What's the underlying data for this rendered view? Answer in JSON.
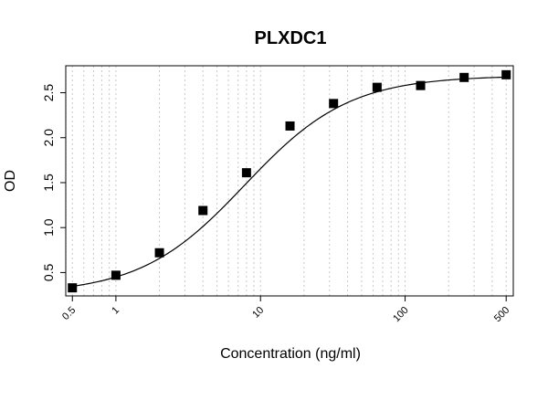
{
  "chart_data": {
    "type": "scatter",
    "title": "PLXDC1",
    "xlabel": "Concentration (ng/ml)",
    "ylabel": "OD",
    "x_scale": "log",
    "xlim": [
      0.45,
      560
    ],
    "ylim": [
      0.24,
      2.8
    ],
    "x_tick_labels": [
      "0.5",
      "1",
      "10",
      "100",
      "500"
    ],
    "x_ticks": [
      0.5,
      1,
      10,
      100,
      500
    ],
    "y_tick_labels": [
      "0.5",
      "1.0",
      "1.5",
      "2.0",
      "2.5"
    ],
    "y_ticks": [
      0.5,
      1.0,
      1.5,
      2.0,
      2.5
    ],
    "grid": "vertical dotted at log minor ticks",
    "series": [
      {
        "x": [
          0.5,
          1,
          2,
          4,
          8,
          16,
          32,
          64,
          128,
          256,
          500
        ],
        "y": [
          0.33,
          0.47,
          0.72,
          1.19,
          1.61,
          2.13,
          2.38,
          2.56,
          2.58,
          2.67,
          2.7
        ]
      }
    ],
    "fit_curve": {
      "type": "4PL",
      "bottom": 0.26,
      "top": 2.69,
      "ec50": 7.8,
      "hill": 1.2
    },
    "colors": {
      "points": "#000000",
      "curve": "#000000",
      "grid": "#c8c8c8"
    }
  }
}
